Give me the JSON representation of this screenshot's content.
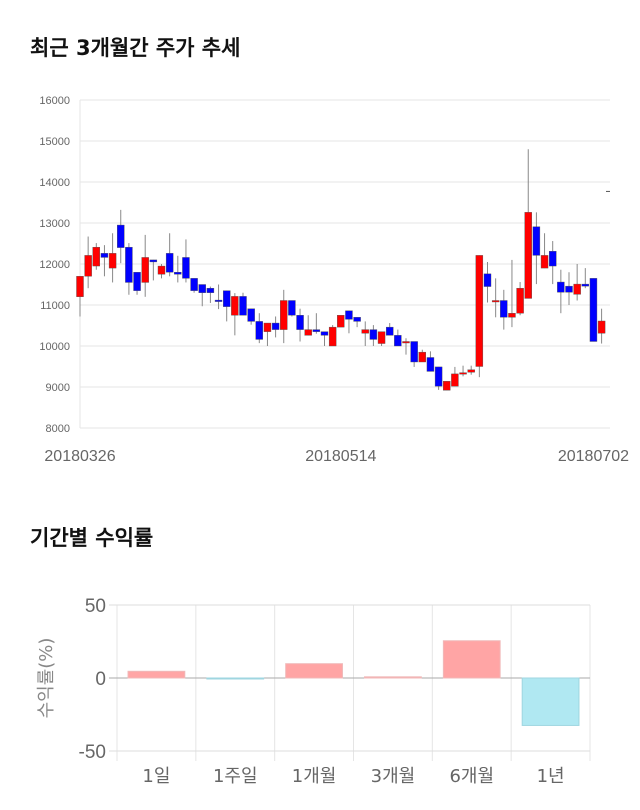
{
  "section1": {
    "title": "최근 3개월간 주가 추세"
  },
  "section2": {
    "title": "기간별 수익률"
  },
  "colors": {
    "up": "#ff0000",
    "down": "#0000ff",
    "positive_bar": "#ffa5a5",
    "negative_bar": "#b0e8f2",
    "grid": "#e5e5e5"
  },
  "chart_data": [
    {
      "type": "candlestick",
      "title": "최근 3개월간 주가 추세",
      "ylim": [
        8000,
        16000
      ],
      "yticks": [
        8000,
        9000,
        10000,
        11000,
        12000,
        13000,
        14000,
        15000,
        16000
      ],
      "xtick_labels": [
        {
          "index": 0,
          "label": "20180326"
        },
        {
          "index": 32,
          "label": "20180514"
        },
        {
          "index": 63,
          "label": "20180702"
        }
      ],
      "grid": true,
      "ohlc": [
        [
          11200,
          11700,
          11700,
          10720
        ],
        [
          11700,
          12210,
          12670,
          11410
        ],
        [
          11950,
          12410,
          12510,
          11860
        ],
        [
          12260,
          12160,
          12460,
          11700
        ],
        [
          11900,
          12260,
          12750,
          11550
        ],
        [
          12950,
          12400,
          13320,
          12020
        ],
        [
          12410,
          11550,
          12510,
          11250
        ],
        [
          11800,
          11350,
          11800,
          11250
        ],
        [
          11550,
          12160,
          12710,
          11200
        ],
        [
          12100,
          12050,
          12100,
          11600
        ],
        [
          11750,
          11950,
          12000,
          11650
        ],
        [
          12260,
          11800,
          12750,
          11700
        ],
        [
          11800,
          11750,
          12200,
          11550
        ],
        [
          12160,
          11650,
          12600,
          11550
        ],
        [
          11650,
          11350,
          11650,
          11300
        ],
        [
          11500,
          11300,
          11500,
          10970
        ],
        [
          11410,
          11300,
          11450,
          11050
        ],
        [
          11120,
          11100,
          11500,
          10900
        ],
        [
          11350,
          10960,
          11350,
          10600
        ],
        [
          10750,
          11210,
          11290,
          10260
        ],
        [
          11210,
          10750,
          11300,
          10750
        ],
        [
          10910,
          10600,
          10910,
          10520
        ],
        [
          10600,
          10160,
          10800,
          10070
        ],
        [
          10350,
          10560,
          10560,
          10000
        ],
        [
          10560,
          10400,
          10720,
          10210
        ],
        [
          10400,
          11110,
          11370,
          10070
        ],
        [
          11110,
          10750,
          11110,
          10720
        ],
        [
          10750,
          10400,
          10910,
          10110
        ],
        [
          10260,
          10400,
          10750,
          10260
        ],
        [
          10400,
          10350,
          10800,
          10300
        ],
        [
          10350,
          10260,
          10350,
          10000
        ],
        [
          10000,
          10460,
          10510,
          10000
        ],
        [
          10460,
          10750,
          10750,
          10460
        ],
        [
          10860,
          10650,
          10860,
          10310
        ],
        [
          10700,
          10600,
          10700,
          10460
        ],
        [
          10310,
          10400,
          10600,
          10000
        ],
        [
          10400,
          10160,
          10510,
          10000
        ],
        [
          10060,
          10350,
          10350,
          10000
        ],
        [
          10460,
          10260,
          10560,
          10260
        ],
        [
          10260,
          10000,
          10400,
          10000
        ],
        [
          10110,
          10110,
          10190,
          9790
        ],
        [
          10110,
          9610,
          10110,
          9490
        ],
        [
          9610,
          9850,
          9910,
          9610
        ],
        [
          9720,
          9380,
          9870,
          9380
        ],
        [
          9490,
          9020,
          9490,
          8930
        ],
        [
          8920,
          9140,
          9140,
          8920
        ],
        [
          9020,
          9320,
          9490,
          9020
        ],
        [
          9320,
          9350,
          9520,
          9260
        ],
        [
          9360,
          9420,
          9520,
          9300
        ],
        [
          9500,
          12210,
          12210,
          9240
        ],
        [
          11760,
          11450,
          12050,
          11060
        ],
        [
          11110,
          11110,
          11650,
          10700
        ],
        [
          11110,
          10700,
          11370,
          10400
        ],
        [
          10700,
          10800,
          12100,
          10460
        ],
        [
          10800,
          11410,
          11560,
          10750
        ],
        [
          11160,
          13260,
          14800,
          11160
        ],
        [
          12910,
          12210,
          13260,
          11510
        ],
        [
          11900,
          12210,
          12750,
          11900
        ],
        [
          12310,
          11950,
          12560,
          11510
        ],
        [
          11560,
          11310,
          11860,
          10800
        ],
        [
          11460,
          11310,
          11800,
          11000
        ],
        [
          11260,
          11510,
          12000,
          11110
        ],
        [
          11510,
          11460,
          11900,
          11410
        ],
        [
          11650,
          10110,
          11650,
          10110
        ],
        [
          10310,
          10610,
          10910,
          10060
        ]
      ],
      "ohlc_order": [
        "open",
        "close",
        "high",
        "low"
      ]
    },
    {
      "type": "bar",
      "title": "기간별 수익률",
      "ylabel": "수익률(%)",
      "ylim": [
        -50,
        50
      ],
      "yticks": [
        -50,
        0,
        50
      ],
      "categories": [
        "1일",
        "1주일",
        "1개월",
        "3개월",
        "6개월",
        "1년"
      ],
      "values": [
        4.6,
        -0.3,
        9.8,
        0.8,
        25.5,
        -32.5
      ],
      "grid": true
    }
  ]
}
